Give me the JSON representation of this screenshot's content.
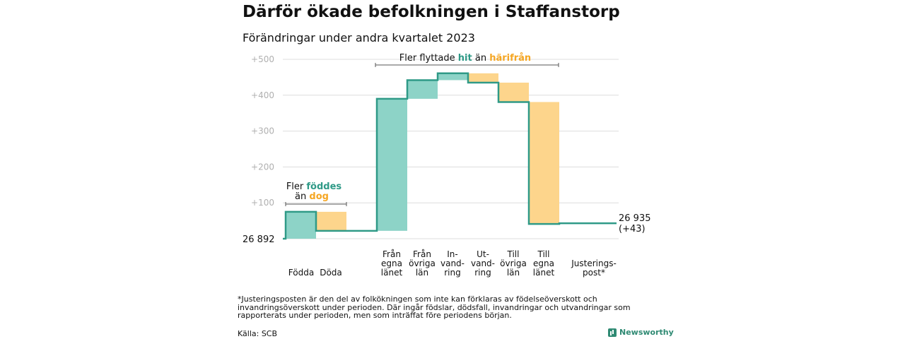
{
  "title": "Därför ökade befolkningen i Staffanstorp",
  "subtitle": "Förändringar under andra kvartalet 2023",
  "footnote": "*Justeringsposten är den del av folkökningen som inte kan förklaras av födelseöverskott och invandringsöverskott under perioden. Där ingår födslar, dödsfall, invandringar och utvandringar som rapporterats under perioden, men som inträffat före periodens början.",
  "source": "Källa: SCB",
  "brand": "Newsworthy",
  "colors": {
    "teal": "#2f9a87",
    "teal_fill": "#8dd3c7",
    "orange_fill": "#fdd58c",
    "orange_text": "#f5a623",
    "grid": "#dddddd"
  },
  "chart_data": {
    "type": "waterfall",
    "start_label": "26  892",
    "end_label": [
      "26 935",
      "(+43)"
    ],
    "yticks": [
      {
        "v": 500,
        "label": "+500"
      },
      {
        "v": 400,
        "label": "+400"
      },
      {
        "v": 300,
        "label": "+300"
      },
      {
        "v": 200,
        "label": "+200"
      },
      {
        "v": 100,
        "label": "+100"
      }
    ],
    "ylim": [
      0,
      500
    ],
    "steps": [
      {
        "label": [
          "Födda"
        ],
        "delta": 75,
        "kind": "gain"
      },
      {
        "label": [
          "Döda"
        ],
        "delta": -53,
        "kind": "loss"
      },
      {
        "label": [
          ""
        ],
        "delta": 0,
        "kind": "gap"
      },
      {
        "label": [
          "Från",
          "egna",
          "länet"
        ],
        "delta": 368,
        "kind": "gain"
      },
      {
        "label": [
          "Från",
          "övriga",
          "län"
        ],
        "delta": 52,
        "kind": "gain"
      },
      {
        "label": [
          "In-",
          "vand-",
          "ring"
        ],
        "delta": 19,
        "kind": "gain"
      },
      {
        "label": [
          "Ut-",
          "vand-",
          "ring"
        ],
        "delta": -26,
        "kind": "loss"
      },
      {
        "label": [
          "Till",
          "övriga",
          "län"
        ],
        "delta": -54,
        "kind": "loss"
      },
      {
        "label": [
          "Till",
          "egna",
          "länet"
        ],
        "delta": -340,
        "kind": "loss"
      },
      {
        "label": [
          "Justerings-",
          "post*"
        ],
        "delta": 2,
        "kind": "adjust"
      }
    ],
    "annotations": [
      {
        "parts": [
          {
            "text": "Fler ",
            "color": "dark"
          },
          {
            "text": "föddes",
            "color": "teal"
          },
          {
            "text": "",
            "color": "dark"
          }
        ],
        "line2": [
          {
            "text": "än ",
            "color": "dark"
          },
          {
            "text": "dog",
            "color": "orange"
          }
        ]
      },
      {
        "parts": [
          {
            "text": "Fler flyttade ",
            "color": "dark"
          },
          {
            "text": "hit",
            "color": "teal"
          },
          {
            "text": "  än ",
            "color": "dark"
          },
          {
            "text": "härifrån",
            "color": "orange"
          }
        ]
      }
    ]
  }
}
